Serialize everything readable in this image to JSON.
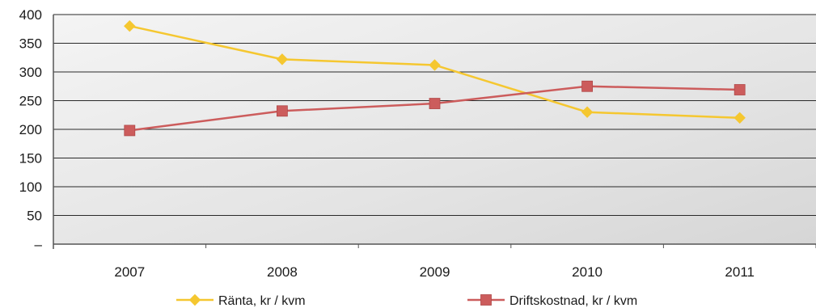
{
  "chart_data": {
    "type": "line",
    "categories": [
      "2007",
      "2008",
      "2009",
      "2010",
      "2011"
    ],
    "series": [
      {
        "name": "Ränta, kr / kvm",
        "values": [
          380,
          322,
          312,
          230,
          220
        ],
        "color": "#f5c730",
        "marker": "diamond"
      },
      {
        "name": "Driftskostnad, kr / kvm",
        "values": [
          198,
          232,
          245,
          275,
          269
        ],
        "color": "#cc5c5c",
        "marker": "square"
      }
    ],
    "y_ticks": [
      "–",
      "50",
      "100",
      "150",
      "200",
      "250",
      "300",
      "350",
      "400"
    ],
    "ylim": [
      0,
      400
    ],
    "grid": true,
    "legend_position": "bottom",
    "plot_background": "#e2e2e2"
  }
}
